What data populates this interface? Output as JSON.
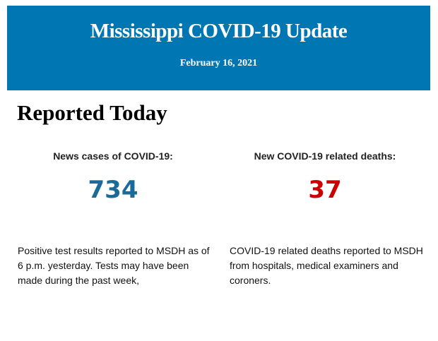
{
  "header": {
    "title": "Mississippi COVID-19 Update",
    "date": "February 16, 2021",
    "background": "#0077b3"
  },
  "section_title": "Reported Today",
  "cases": {
    "label": "News cases of COVID-19:",
    "value": "734",
    "color": "#1a6a9a",
    "description": "Positive test results reported to MSDH as of 6 p.m. yesterday. Tests may have been made during the past week,"
  },
  "deaths": {
    "label": "New COVID-19 related deaths:",
    "value": "37",
    "color": "#cc0000",
    "description": "COVID-19 related deaths reported to MSDH from hospitals, medical examiners and coroners."
  }
}
